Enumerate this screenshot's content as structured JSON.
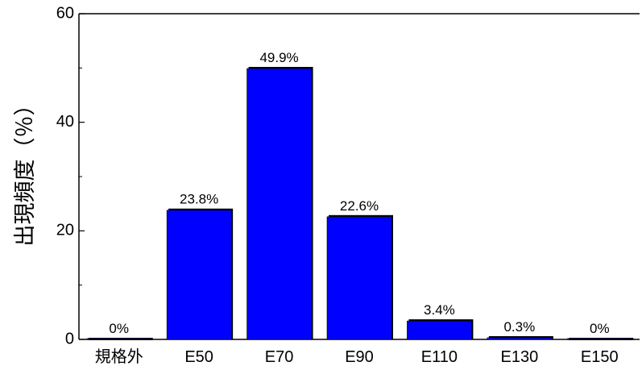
{
  "chart_data": {
    "type": "bar",
    "categories": [
      "規格外",
      "E50",
      "E70",
      "E90",
      "E110",
      "E130",
      "E150"
    ],
    "values": [
      0,
      23.8,
      49.9,
      22.6,
      3.4,
      0.3,
      0
    ],
    "data_labels": [
      "0%",
      "23.8%",
      "49.9%",
      "22.6%",
      "3.4%",
      "0.3%",
      "0%"
    ],
    "ylabel": "出現頻度（％）",
    "ylim": [
      0,
      60
    ],
    "yticks": [
      0,
      20,
      40,
      60
    ],
    "yticks_minor": [
      10,
      30,
      50
    ],
    "bar_color": "#0000ff",
    "bar_shadow_color": "#000000",
    "grid": false,
    "legend": "none"
  }
}
